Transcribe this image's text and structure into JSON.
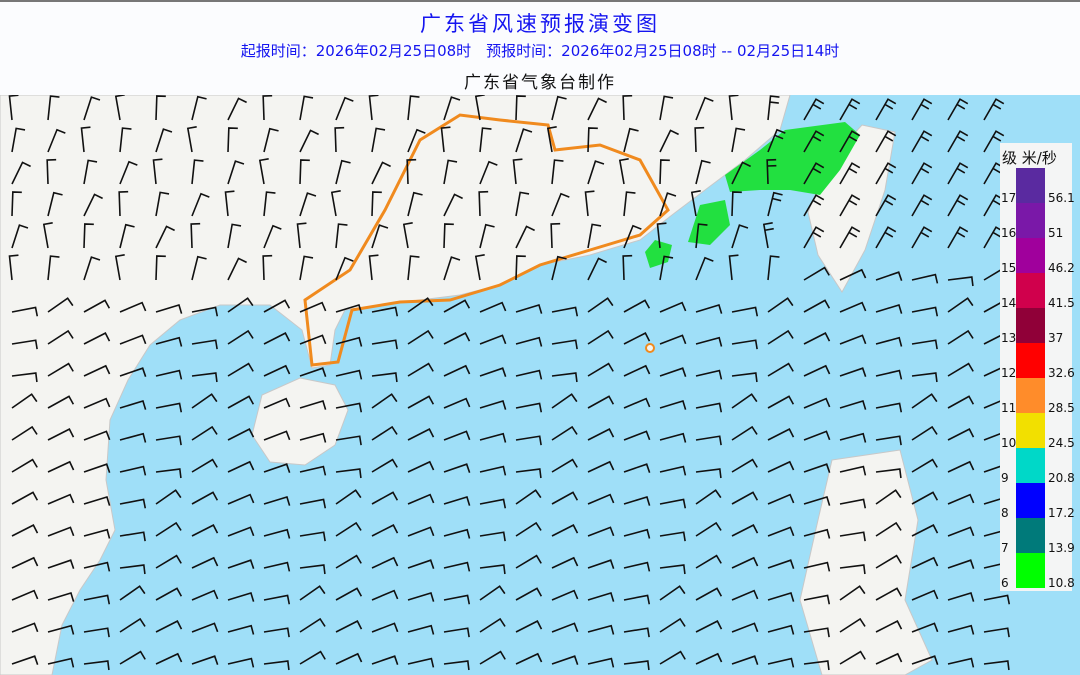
{
  "header": {
    "title": "广东省风速预报演变图",
    "subtitle": "起报时间：2026年02月25日08时　预报时间：2026年02月25日08时 -- 02月25日14时",
    "credit": "广东省气象台制作"
  },
  "colors": {
    "ocean": "#9fdff8",
    "land": "#f4f4f1",
    "province_outline": "#f08a1e",
    "gale_area": "#22e040",
    "title": "#1515f0"
  },
  "legend": {
    "header": "级 米/秒",
    "rows": [
      {
        "level": "17",
        "speed": "56.1",
        "color": "#5a2aa0"
      },
      {
        "level": "16",
        "speed": "51",
        "color": "#7a18a8"
      },
      {
        "level": "15",
        "speed": "46.2",
        "color": "#a0009c"
      },
      {
        "level": "14",
        "speed": "41.5",
        "color": "#d0004c"
      },
      {
        "level": "13",
        "speed": "37",
        "color": "#900038"
      },
      {
        "level": "12",
        "speed": "32.6",
        "color": "#ff0000"
      },
      {
        "level": "11",
        "speed": "28.5",
        "color": "#ff8c2a"
      },
      {
        "level": "10",
        "speed": "24.5",
        "color": "#f2e000"
      },
      {
        "level": "9",
        "speed": "20.8",
        "color": "#00d8c8"
      },
      {
        "level": "8",
        "speed": "17.2",
        "color": "#0000ff"
      },
      {
        "level": "7",
        "speed": "13.9",
        "color": "#007a7a"
      },
      {
        "level": "6",
        "speed": "10.8",
        "color": "#00ff00"
      }
    ]
  },
  "map": {
    "wind_barbs": "grid"
  }
}
